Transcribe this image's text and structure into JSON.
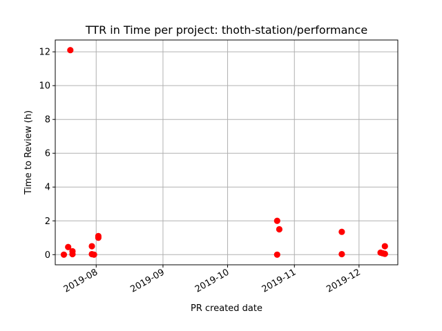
{
  "chart_data": {
    "type": "scatter",
    "title": "TTR in Time per project: thoth-station/performance",
    "xlabel": "PR created date",
    "ylabel": "Time to Review (h)",
    "x_type": "date",
    "xlim": [
      "2019-07-13",
      "2019-12-19"
    ],
    "ylim": [
      -0.6,
      12.7
    ],
    "x_ticks": [
      "2019-08-01",
      "2019-09-01",
      "2019-10-01",
      "2019-11-01",
      "2019-12-01"
    ],
    "x_tick_labels": [
      "2019-08",
      "2019-09",
      "2019-10",
      "2019-11",
      "2019-12"
    ],
    "y_ticks": [
      0,
      2,
      4,
      6,
      8,
      10,
      12
    ],
    "y_tick_labels": [
      "0",
      "2",
      "4",
      "6",
      "8",
      "10",
      "12"
    ],
    "grid": true,
    "marker_color": "#ff0000",
    "points": [
      {
        "x": "2019-07-17",
        "y": 0.0
      },
      {
        "x": "2019-07-19",
        "y": 0.45
      },
      {
        "x": "2019-07-20",
        "y": 12.1
      },
      {
        "x": "2019-07-21",
        "y": 0.2
      },
      {
        "x": "2019-07-21",
        "y": 0.03
      },
      {
        "x": "2019-07-30",
        "y": 0.5
      },
      {
        "x": "2019-07-30",
        "y": 0.03
      },
      {
        "x": "2019-07-31",
        "y": 0.0
      },
      {
        "x": "2019-08-02",
        "y": 1.1
      },
      {
        "x": "2019-08-02",
        "y": 1.0
      },
      {
        "x": "2019-10-24",
        "y": 2.0
      },
      {
        "x": "2019-10-24",
        "y": 0.0
      },
      {
        "x": "2019-10-25",
        "y": 1.5
      },
      {
        "x": "2019-11-23",
        "y": 1.35
      },
      {
        "x": "2019-11-23",
        "y": 0.03
      },
      {
        "x": "2019-12-11",
        "y": 0.12
      },
      {
        "x": "2019-12-12",
        "y": 0.08
      },
      {
        "x": "2019-12-13",
        "y": 0.5
      },
      {
        "x": "2019-12-13",
        "y": 0.05
      }
    ]
  }
}
